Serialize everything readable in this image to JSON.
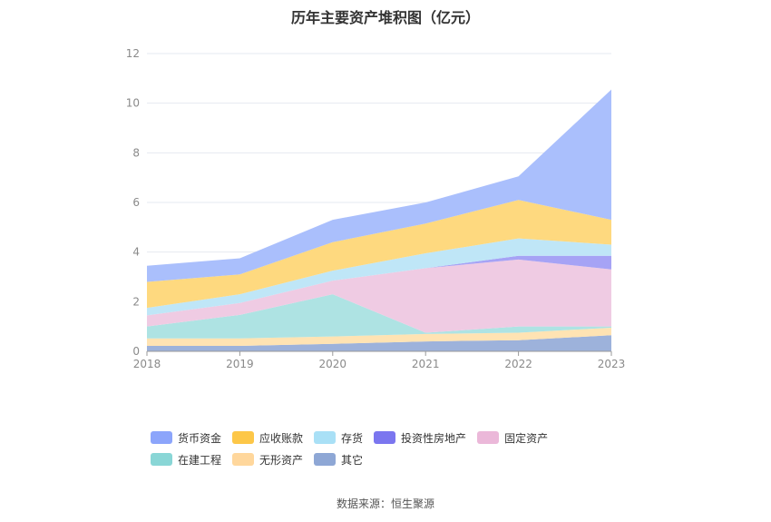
{
  "chart_data": {
    "type": "area",
    "stacked": true,
    "title": "历年主要资产堆积图（亿元）",
    "x": [
      "2018",
      "2019",
      "2020",
      "2021",
      "2022",
      "2023"
    ],
    "ylim": [
      0,
      12
    ],
    "yticks": [
      0,
      2,
      4,
      6,
      8,
      10,
      12
    ],
    "xlabel": "",
    "ylabel": "",
    "grid": true,
    "legend_position": "bottom",
    "series": [
      {
        "name": "其它",
        "color": "#9db2db",
        "values": [
          0.22,
          0.22,
          0.3,
          0.4,
          0.45,
          0.65
        ]
      },
      {
        "name": "无形资产",
        "color": "#ffe3b3",
        "values": [
          0.3,
          0.3,
          0.3,
          0.3,
          0.3,
          0.3
        ]
      },
      {
        "name": "在建工程",
        "color": "#aee3e3",
        "values": [
          0.48,
          0.95,
          1.7,
          0.05,
          0.25,
          0.05
        ]
      },
      {
        "name": "固定资产",
        "color": "#efcbe3",
        "values": [
          0.45,
          0.48,
          0.55,
          2.6,
          2.7,
          2.3
        ]
      },
      {
        "name": "投资性房地产",
        "color": "#a6a3f5",
        "values": [
          0.0,
          0.0,
          0.0,
          0.0,
          0.15,
          0.55
        ]
      },
      {
        "name": "存货",
        "color": "#bfe6f7",
        "values": [
          0.3,
          0.35,
          0.4,
          0.6,
          0.7,
          0.45
        ]
      },
      {
        "name": "应收账款",
        "color": "#fed97f",
        "values": [
          1.05,
          0.8,
          1.15,
          1.2,
          1.55,
          1.0
        ]
      },
      {
        "name": "货币资金",
        "color": "#aabffc",
        "values": [
          0.65,
          0.65,
          0.9,
          0.85,
          0.95,
          5.25
        ]
      }
    ]
  },
  "legend": [
    {
      "label": "货币资金",
      "color": "#8ca5fb"
    },
    {
      "label": "应收账款",
      "color": "#fdc748"
    },
    {
      "label": "存货",
      "color": "#a9e0f6"
    },
    {
      "label": "投资性房地产",
      "color": "#7b76ef"
    },
    {
      "label": "固定资产",
      "color": "#ebb8d9"
    },
    {
      "label": "在建工程",
      "color": "#89d6d6"
    },
    {
      "label": "无形资产",
      "color": "#ffd79c"
    },
    {
      "label": "其它",
      "color": "#8ea7d5"
    }
  ],
  "source": "数据来源：恒生聚源"
}
